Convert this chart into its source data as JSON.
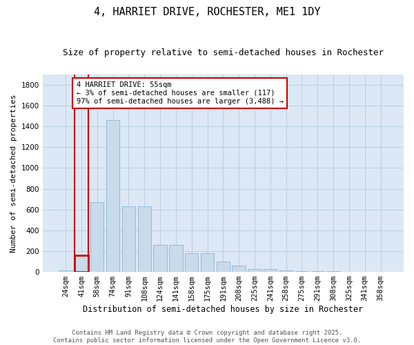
{
  "title": "4, HARRIET DRIVE, ROCHESTER, ME1 1DY",
  "subtitle": "Size of property relative to semi-detached houses in Rochester",
  "xlabel": "Distribution of semi-detached houses by size in Rochester",
  "ylabel": "Number of semi-detached properties",
  "bar_color": "#c9daea",
  "bar_edge_color": "#8ab4d4",
  "highlight_bar_index": 1,
  "highlight_edge_color": "#cc0000",
  "background_color": "#ffffff",
  "plot_bg_color": "#dce8f5",
  "grid_color": "#b8cfe0",
  "annotation_text": "4 HARRIET DRIVE: 55sqm\n← 3% of semi-detached houses are smaller (117)\n97% of semi-detached houses are larger (3,488) →",
  "annotation_fontsize": 7.5,
  "categories": [
    "24sqm",
    "41sqm",
    "58sqm",
    "74sqm",
    "91sqm",
    "108sqm",
    "124sqm",
    "141sqm",
    "158sqm",
    "175sqm",
    "191sqm",
    "208sqm",
    "225sqm",
    "241sqm",
    "258sqm",
    "275sqm",
    "291sqm",
    "308sqm",
    "325sqm",
    "341sqm",
    "358sqm"
  ],
  "values": [
    15,
    160,
    670,
    1460,
    630,
    630,
    260,
    260,
    180,
    180,
    100,
    60,
    30,
    30,
    15,
    10,
    10,
    5,
    3,
    2,
    1
  ],
  "ylim": [
    0,
    1900
  ],
  "yticks": [
    0,
    200,
    400,
    600,
    800,
    1000,
    1200,
    1400,
    1600,
    1800
  ],
  "title_fontsize": 11,
  "subtitle_fontsize": 9,
  "xlabel_fontsize": 8.5,
  "ylabel_fontsize": 8,
  "tick_fontsize": 7.5,
  "footer_text": "Contains HM Land Registry data © Crown copyright and database right 2025.\nContains public sector information licensed under the Open Government Licence v3.0.",
  "footer_fontsize": 6.5
}
